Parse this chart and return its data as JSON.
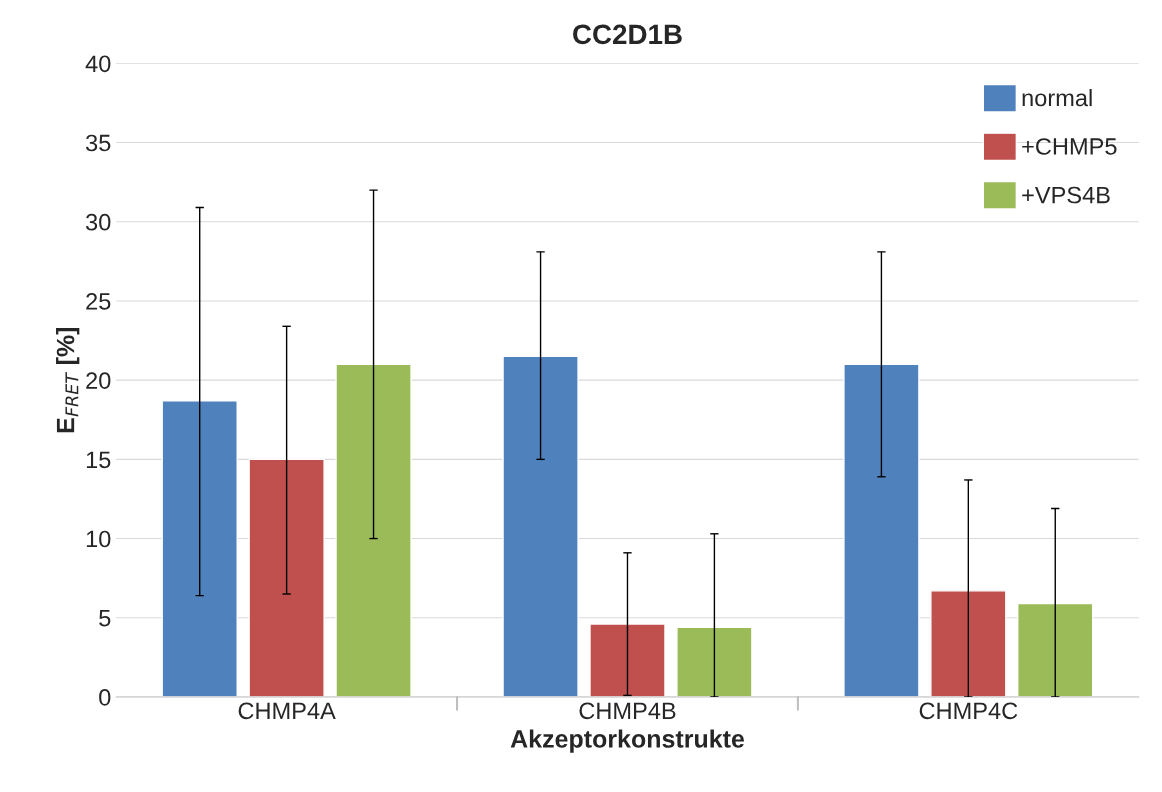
{
  "chart_data": {
    "type": "bar",
    "title": "CC2D1B",
    "xlabel": "Akzeptorkonstrukte",
    "ylabel": "E$_{FRET}$ [%]",
    "categories": [
      "CHMP4A",
      "CHMP4B",
      "CHMP4C"
    ],
    "series": [
      {
        "name": "normal",
        "color": "#4f81bd",
        "values": [
          18.7,
          21.5,
          21.0
        ],
        "errors": [
          [
            6.4,
            30.9
          ],
          [
            15.0,
            28.1
          ],
          [
            13.9,
            28.1
          ]
        ]
      },
      {
        "name": "+CHMP5",
        "color": "#c0504d",
        "values": [
          15.0,
          4.6,
          6.7
        ],
        "errors": [
          [
            6.5,
            23.4
          ],
          [
            0.1,
            9.1
          ],
          [
            0,
            13.7
          ]
        ]
      },
      {
        "name": "+VPS4B",
        "color": "#9bbb59",
        "values": [
          21.0,
          4.4,
          5.9
        ],
        "errors": [
          [
            10.0,
            32.0
          ],
          [
            0,
            10.3
          ],
          [
            0,
            11.9
          ]
        ]
      }
    ],
    "ylim": [
      0,
      40
    ],
    "yticks": [
      0,
      5,
      10,
      15,
      20,
      25,
      30,
      35,
      40
    ],
    "grid": "y",
    "legend": "top right"
  }
}
